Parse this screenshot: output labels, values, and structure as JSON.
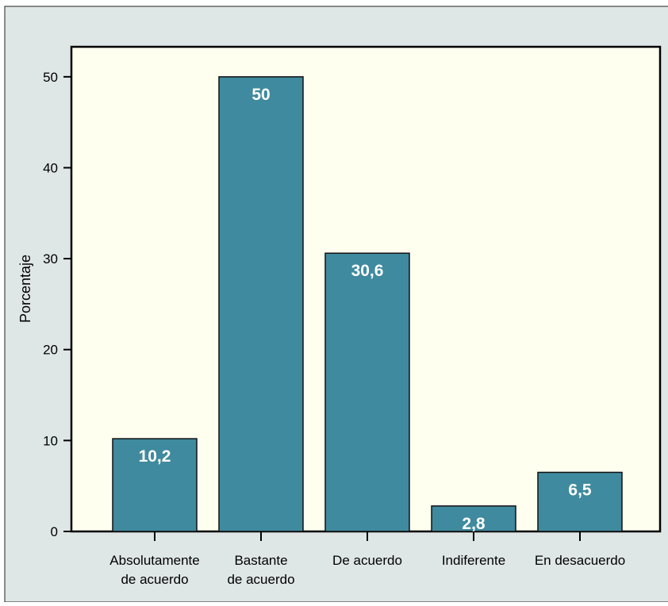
{
  "chart_data": {
    "type": "bar",
    "categories": [
      [
        "Absolutamente",
        "de acuerdo"
      ],
      [
        "Bastante",
        "de acuerdo"
      ],
      [
        "De acuerdo"
      ],
      [
        "Indiferente"
      ],
      [
        "En desacuerdo"
      ]
    ],
    "values": [
      10.2,
      50,
      30.6,
      2.8,
      6.5
    ],
    "data_labels": [
      "10,2",
      "50",
      "30,6",
      "2,8",
      "6,5"
    ],
    "ylabel": "Porcentaje",
    "xlabel": "",
    "ylim": [
      0,
      53.3
    ],
    "yticks": [
      0,
      10,
      20,
      30,
      40,
      50
    ],
    "grid": false,
    "colors": {
      "bar": "#3f8a9e",
      "plot_background": "#fffff0",
      "panel_background": "#dfe6e6",
      "axis": "#000000",
      "data_label": "#ffffff"
    }
  }
}
